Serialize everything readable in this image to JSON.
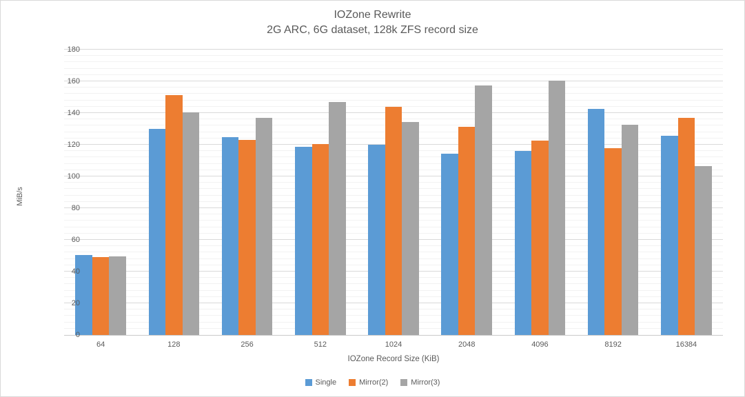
{
  "chart_data": {
    "type": "bar",
    "title": "IOZone Rewrite",
    "subtitle": "2G ARC, 6G dataset, 128k ZFS record size",
    "xlabel": "IOZone Record Size (KiB)",
    "ylabel": "MiB/s",
    "categories": [
      "64",
      "128",
      "256",
      "512",
      "1024",
      "2048",
      "4096",
      "8192",
      "16384"
    ],
    "series": [
      {
        "name": "Single",
        "color": "#5B9BD5",
        "values": [
          50.5,
          130.0,
          125.0,
          118.5,
          120.0,
          114.5,
          116.0,
          142.5,
          125.5
        ]
      },
      {
        "name": "Mirror(2)",
        "color": "#ED7D31",
        "values": [
          49.0,
          151.5,
          123.0,
          120.5,
          144.0,
          131.5,
          122.5,
          118.0,
          137.0
        ]
      },
      {
        "name": "Mirror(3)",
        "color": "#A5A5A5",
        "values": [
          49.5,
          140.5,
          137.0,
          147.0,
          134.5,
          157.5,
          160.5,
          132.5,
          106.5
        ]
      }
    ],
    "ylim": [
      0,
      180
    ],
    "y_major_unit": 20,
    "y_minor_unit": 4,
    "grid": true,
    "legend_position": "bottom"
  },
  "style_colors": {
    "major_gridline": "#d9d9d9",
    "minor_gridline": "#f2f2f2",
    "axis_line": "#c9c9c9",
    "text": "#595959",
    "chart_border": "#d9d9d9"
  }
}
